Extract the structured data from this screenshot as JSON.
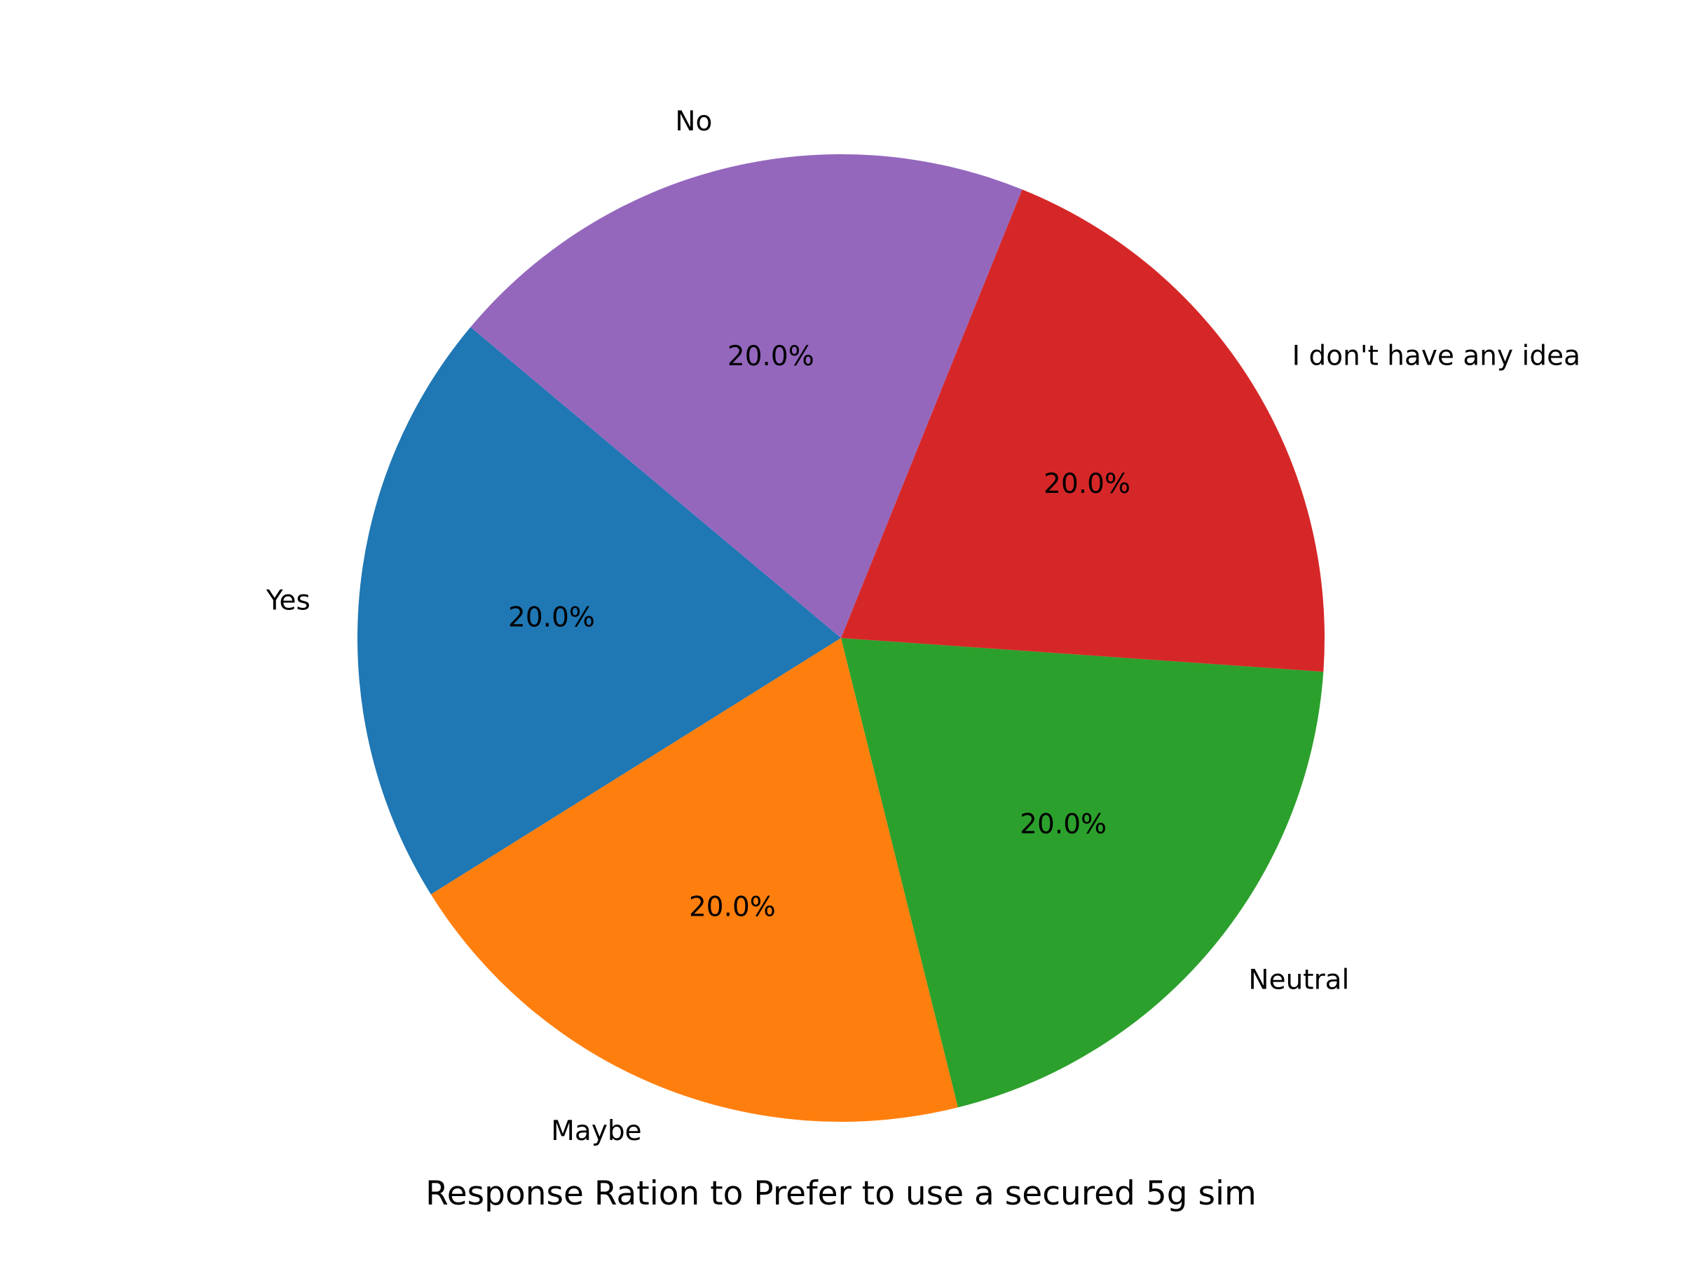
{
  "chart_data": {
    "type": "pie",
    "title": "Response Ration to Prefer to use a secured 5g sim",
    "slices": [
      {
        "label": "Yes",
        "value": 20.0,
        "pct_label": "20.0%",
        "color": "#1f77b4"
      },
      {
        "label": "Maybe",
        "value": 20.0,
        "pct_label": "20.0%",
        "color": "#ff7f0e"
      },
      {
        "label": "Neutral",
        "value": 20.0,
        "pct_label": "20.0%",
        "color": "#2ca02c"
      },
      {
        "label": "I don't have any idea",
        "value": 20.0,
        "pct_label": "20.0%",
        "color": "#d62728"
      },
      {
        "label": "No",
        "value": 20.0,
        "pct_label": "20.0%",
        "color": "#9467bd"
      }
    ]
  }
}
